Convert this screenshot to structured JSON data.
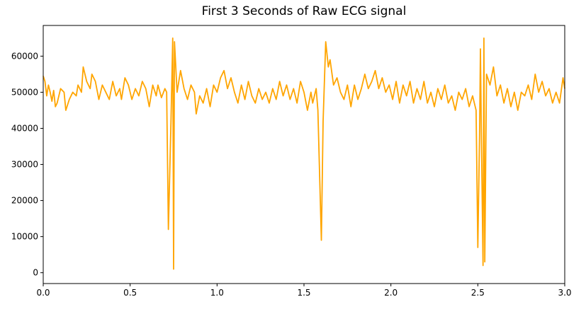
{
  "chart_data": {
    "type": "line",
    "title": "First 3 Seconds of Raw ECG signal",
    "color": "#ffa500",
    "x": [
      0.0,
      0.01,
      0.02,
      0.03,
      0.04,
      0.05,
      0.06,
      0.07,
      0.08,
      0.1,
      0.12,
      0.13,
      0.15,
      0.17,
      0.19,
      0.2,
      0.22,
      0.23,
      0.25,
      0.27,
      0.28,
      0.3,
      0.32,
      0.34,
      0.36,
      0.38,
      0.4,
      0.42,
      0.44,
      0.45,
      0.47,
      0.49,
      0.51,
      0.53,
      0.55,
      0.57,
      0.59,
      0.61,
      0.63,
      0.65,
      0.66,
      0.68,
      0.7,
      0.71,
      0.72,
      0.735,
      0.745,
      0.75,
      0.755,
      0.77,
      0.79,
      0.81,
      0.83,
      0.85,
      0.87,
      0.88,
      0.9,
      0.92,
      0.94,
      0.96,
      0.98,
      1.0,
      1.02,
      1.04,
      1.06,
      1.08,
      1.1,
      1.12,
      1.14,
      1.16,
      1.18,
      1.2,
      1.22,
      1.24,
      1.26,
      1.28,
      1.3,
      1.32,
      1.34,
      1.36,
      1.38,
      1.4,
      1.42,
      1.44,
      1.46,
      1.48,
      1.5,
      1.52,
      1.54,
      1.55,
      1.57,
      1.58,
      1.6,
      1.61,
      1.625,
      1.64,
      1.65,
      1.67,
      1.69,
      1.71,
      1.73,
      1.75,
      1.77,
      1.79,
      1.81,
      1.83,
      1.85,
      1.87,
      1.89,
      1.91,
      1.93,
      1.95,
      1.97,
      1.99,
      2.01,
      2.03,
      2.05,
      2.07,
      2.09,
      2.11,
      2.13,
      2.15,
      2.17,
      2.19,
      2.21,
      2.23,
      2.25,
      2.27,
      2.29,
      2.31,
      2.33,
      2.35,
      2.37,
      2.39,
      2.41,
      2.43,
      2.45,
      2.47,
      2.49,
      2.5,
      2.51,
      2.515,
      2.52,
      2.53,
      2.535,
      2.54,
      2.55,
      2.57,
      2.59,
      2.61,
      2.63,
      2.65,
      2.67,
      2.69,
      2.71,
      2.73,
      2.75,
      2.77,
      2.79,
      2.81,
      2.83,
      2.85,
      2.87,
      2.89,
      2.91,
      2.93,
      2.95,
      2.97,
      2.99,
      3.0
    ],
    "values": [
      54500,
      53000,
      49000,
      52000,
      50000,
      47500,
      50500,
      46000,
      47000,
      51000,
      50000,
      45000,
      48000,
      50000,
      49000,
      52000,
      50000,
      57000,
      53000,
      51000,
      55000,
      53000,
      48000,
      52000,
      50000,
      48000,
      53000,
      49000,
      51000,
      48000,
      54000,
      52000,
      48000,
      51000,
      49000,
      53000,
      51000,
      46000,
      52000,
      49000,
      52000,
      48500,
      51000,
      50000,
      12000,
      42000,
      65000,
      1000,
      64000,
      50000,
      56000,
      51000,
      48000,
      52000,
      50000,
      44000,
      49000,
      47000,
      51000,
      46000,
      52000,
      50000,
      54000,
      56000,
      51000,
      54000,
      50000,
      47000,
      52000,
      48000,
      53000,
      49000,
      47000,
      51000,
      48000,
      50000,
      47000,
      51000,
      48000,
      53000,
      49000,
      52000,
      48000,
      51000,
      47000,
      53000,
      50000,
      45000,
      50000,
      47000,
      51000,
      45000,
      9000,
      42000,
      64000,
      57000,
      59000,
      52000,
      54000,
      50000,
      48000,
      52000,
      46000,
      52000,
      48000,
      51000,
      55000,
      51000,
      53000,
      56000,
      51000,
      54000,
      50000,
      52000,
      48000,
      53000,
      47000,
      52000,
      49000,
      53000,
      47000,
      51000,
      48000,
      53000,
      47000,
      50000,
      46000,
      51000,
      48000,
      52000,
      47000,
      49000,
      45000,
      50000,
      48000,
      51000,
      46000,
      49000,
      45000,
      7000,
      38000,
      62000,
      40000,
      2000,
      65000,
      3000,
      55000,
      52000,
      57000,
      49000,
      52000,
      47000,
      51000,
      46000,
      50000,
      45000,
      50000,
      49000,
      52000,
      48000,
      55000,
      50000,
      53000,
      49000,
      51000,
      47000,
      50000,
      47000,
      54000,
      51000
    ],
    "xlim": [
      0,
      3
    ],
    "xticks": [
      {
        "value": 0,
        "label": "0.0"
      },
      0.5,
      {
        "value": 1,
        "label": "1.0"
      },
      1.5,
      {
        "value": 2,
        "label": "2.0"
      },
      2.5,
      {
        "value": 3,
        "label": "3.0"
      }
    ],
    "ylim": [
      -3000,
      68500
    ],
    "yticks": [
      0,
      10000,
      20000,
      30000,
      40000,
      50000,
      60000
    ]
  }
}
